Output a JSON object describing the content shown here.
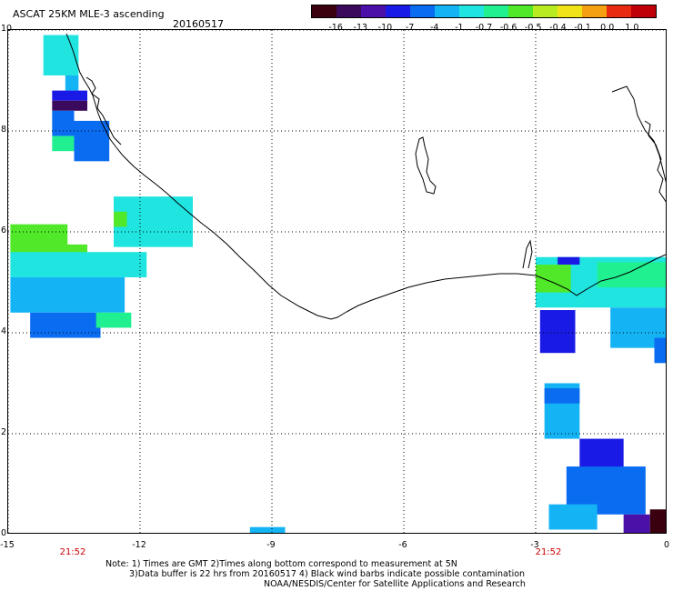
{
  "title": "ASCAT 25KM MLE-3 ascending",
  "date": "20160517",
  "colorbar": {
    "labels": [
      "-16",
      "-13",
      "-10",
      "-7",
      "-4",
      "-1",
      "-0.7",
      "-0.6",
      "-0.5",
      "-0.4",
      "-0.1",
      "0.0",
      "1.0"
    ],
    "colors": [
      "#3a0010",
      "#3b0a5c",
      "#4b10a8",
      "#1a1ae6",
      "#0a6cf0",
      "#14b4f4",
      "#20e4e0",
      "#20f090",
      "#50e828",
      "#b8ec20",
      "#f0e418",
      "#f4a010",
      "#e82a10",
      "#c00008"
    ]
  },
  "axes": {
    "x_ticks": [
      "-15",
      "-12",
      "-9",
      "-6",
      "-3",
      "0"
    ],
    "y_ticks": [
      "10",
      "8",
      "6",
      "4",
      "2",
      "0"
    ],
    "x_range": [
      -15,
      0
    ],
    "y_range": [
      0,
      10
    ]
  },
  "times": [
    "21:52",
    "21:52"
  ],
  "notes": [
    "Note: 1) Times are GMT 2)Times along bottom correspond to measurement at 5N",
    "3)Data buffer is 22 hrs from 20160517 4) Black wind barbs indicate possible contamination",
    "NOAA/NESDIS/Center for Satellite Applications and Research"
  ],
  "swaths": [
    {
      "lon": -14.2,
      "lat": 9.1,
      "w": 0.8,
      "h": 0.8,
      "color": "#20e4e0"
    },
    {
      "lon": -13.7,
      "lat": 8.8,
      "w": 0.3,
      "h": 0.3,
      "color": "#14b4f4"
    },
    {
      "lon": -14.0,
      "lat": 8.6,
      "w": 0.8,
      "h": 0.2,
      "color": "#1a1ae6"
    },
    {
      "lon": -14.0,
      "lat": 8.4,
      "w": 0.8,
      "h": 0.2,
      "color": "#3b0a5c"
    },
    {
      "lon": -14.0,
      "lat": 7.9,
      "w": 0.5,
      "h": 0.5,
      "color": "#0a6cf0"
    },
    {
      "lon": -14.0,
      "lat": 7.6,
      "w": 0.5,
      "h": 0.3,
      "color": "#20f090"
    },
    {
      "lon": -13.5,
      "lat": 7.4,
      "w": 0.8,
      "h": 0.8,
      "color": "#0a6cf0"
    },
    {
      "lon": -14.95,
      "lat": 5.55,
      "w": 1.3,
      "h": 0.6,
      "color": "#50e828"
    },
    {
      "lon": -13.7,
      "lat": 5.55,
      "w": 0.5,
      "h": 0.2,
      "color": "#50e828"
    },
    {
      "lon": -14.95,
      "lat": 5.1,
      "w": 3.1,
      "h": 0.5,
      "color": "#20e4e0"
    },
    {
      "lon": -14.95,
      "lat": 4.4,
      "w": 2.6,
      "h": 0.7,
      "color": "#14b4f4"
    },
    {
      "lon": -14.5,
      "lat": 3.9,
      "w": 1.6,
      "h": 0.5,
      "color": "#0a6cf0"
    },
    {
      "lon": -13.0,
      "lat": 4.1,
      "w": 0.8,
      "h": 0.3,
      "color": "#20f090"
    },
    {
      "lon": -12.6,
      "lat": 5.7,
      "w": 1.8,
      "h": 1.0,
      "color": "#20e4e0"
    },
    {
      "lon": -12.6,
      "lat": 6.1,
      "w": 0.3,
      "h": 0.3,
      "color": "#50e828"
    },
    {
      "lon": -9.5,
      "lat": 0.0,
      "w": 0.8,
      "h": 0.15,
      "color": "#14b4f4"
    },
    {
      "lon": -3.0,
      "lat": 4.5,
      "w": 3.0,
      "h": 1.0,
      "color": "#20e4e0"
    },
    {
      "lon": -2.5,
      "lat": 5.35,
      "w": 0.5,
      "h": 0.15,
      "color": "#1a1ae6"
    },
    {
      "lon": -3.0,
      "lat": 4.8,
      "w": 0.8,
      "h": 0.55,
      "color": "#50e828"
    },
    {
      "lon": -1.6,
      "lat": 4.9,
      "w": 1.6,
      "h": 0.5,
      "color": "#20f090"
    },
    {
      "lon": -2.9,
      "lat": 3.6,
      "w": 0.8,
      "h": 0.85,
      "color": "#1a1ae6"
    },
    {
      "lon": -1.3,
      "lat": 3.7,
      "w": 1.3,
      "h": 0.8,
      "color": "#14b4f4"
    },
    {
      "lon": -0.3,
      "lat": 3.4,
      "w": 0.3,
      "h": 0.5,
      "color": "#0a6cf0"
    },
    {
      "lon": -2.8,
      "lat": 1.9,
      "w": 0.8,
      "h": 1.1,
      "color": "#14b4f4"
    },
    {
      "lon": -2.8,
      "lat": 2.6,
      "w": 0.8,
      "h": 0.3,
      "color": "#0a6cf0"
    },
    {
      "lon": -2.0,
      "lat": 1.2,
      "w": 1.0,
      "h": 0.7,
      "color": "#1a1ae6"
    },
    {
      "lon": -2.3,
      "lat": 0.4,
      "w": 1.8,
      "h": 0.95,
      "color": "#0a6cf0"
    },
    {
      "lon": -2.7,
      "lat": 0.1,
      "w": 1.1,
      "h": 0.5,
      "color": "#14b4f4"
    },
    {
      "lon": -1.0,
      "lat": 0.0,
      "w": 0.6,
      "h": 0.4,
      "color": "#4b10a8"
    },
    {
      "lon": -0.4,
      "lat": 0.0,
      "w": 0.4,
      "h": 0.5,
      "color": "#3a0010"
    }
  ]
}
